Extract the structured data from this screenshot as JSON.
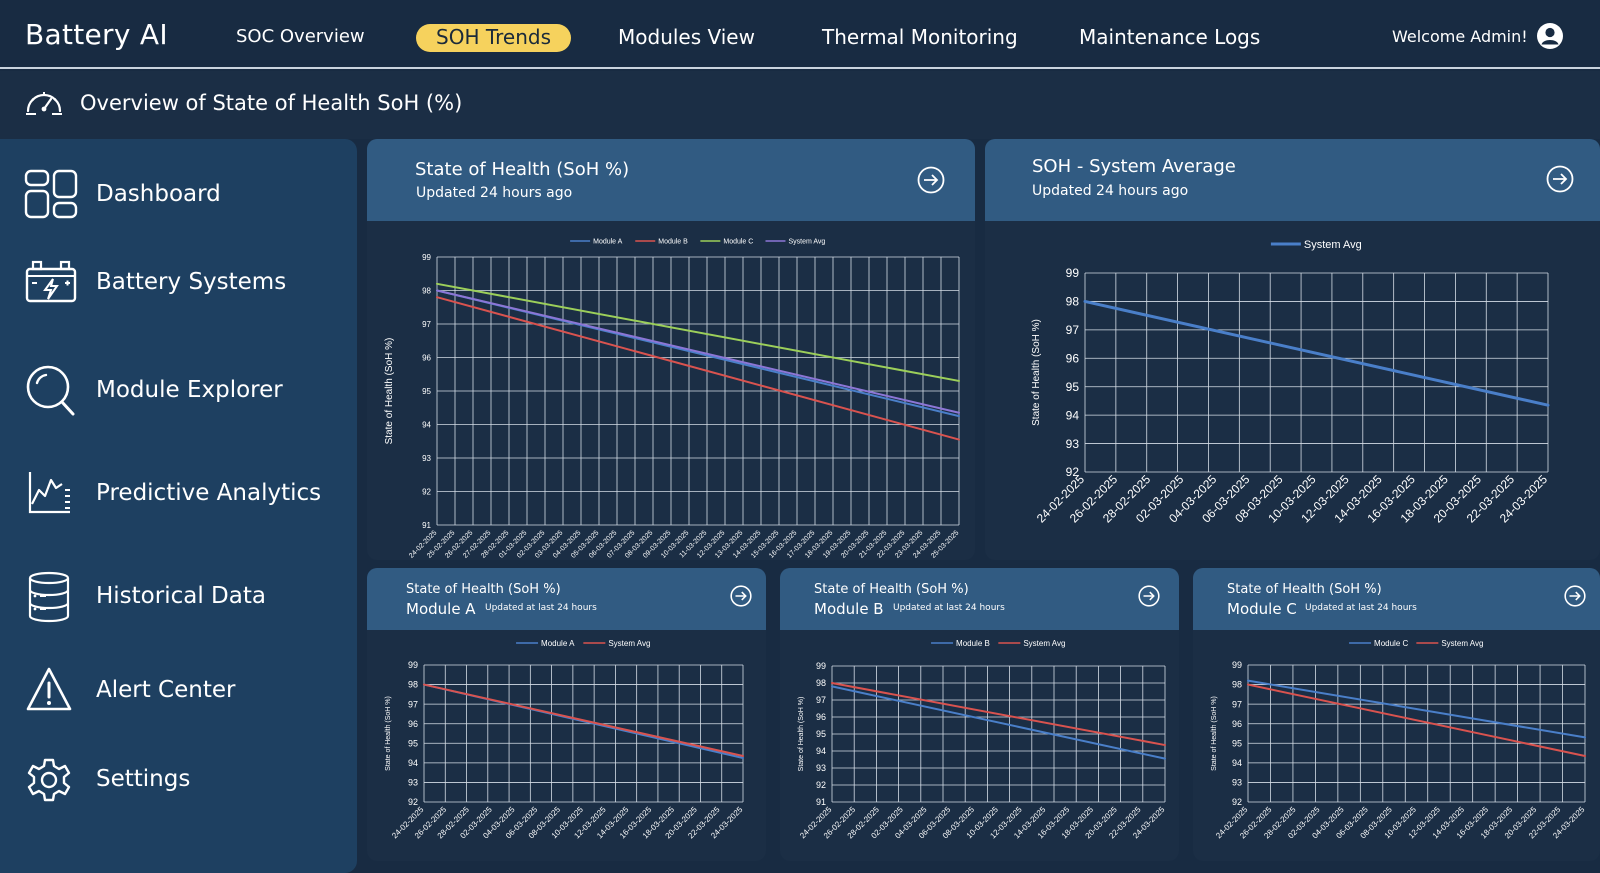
{
  "app": {
    "brand": "Battery AI",
    "welcome": "Welcome Admin!"
  },
  "nav": [
    {
      "label": "SOC Overview",
      "active": false
    },
    {
      "label": "SOH Trends",
      "active": true
    },
    {
      "label": "Modules View",
      "active": false
    },
    {
      "label": "Thermal Monitoring",
      "active": false
    },
    {
      "label": "Maintenance Logs",
      "active": false
    }
  ],
  "subheader": {
    "title": "Overview of State of Health SoH (%)",
    "icon": "gauge-icon"
  },
  "sidebar": {
    "items": [
      {
        "label": "Dashboard",
        "icon": "dashboard-grid-icon"
      },
      {
        "label": "Battery Systems",
        "icon": "battery-icon"
      },
      {
        "label": "Module Explorer",
        "icon": "search-icon"
      },
      {
        "label": "Predictive Analytics",
        "icon": "analytics-chart-icon"
      },
      {
        "label": "Historical Data",
        "icon": "database-icon"
      },
      {
        "label": "Alert Center",
        "icon": "alert-triangle-icon"
      },
      {
        "label": "Settings",
        "icon": "gear-icon"
      }
    ]
  },
  "colors": {
    "module_a": "#4a7fc9",
    "module_b": "#d9534f",
    "module_c": "#9ccf5a",
    "system_avg": "#8c76d6",
    "system_avg_single": "#4a7fc9",
    "system_avg_small": "#d9534f",
    "active_tab": "#f6d25d"
  },
  "cards": {
    "main": {
      "title": "State of Health (SoH %)",
      "subtitle": "Updated 24 hours ago"
    },
    "avg": {
      "title": "SOH - System Average",
      "subtitle": "Updated 24 hours ago"
    },
    "mod_a": {
      "title": "State of Health (SoH %)",
      "module": "Module A",
      "subtitle": "Updated at last 24 hours"
    },
    "mod_b": {
      "title": "State of Health (SoH %)",
      "module": "Module B",
      "subtitle": "Updated at last 24 hours"
    },
    "mod_c": {
      "title": "State of Health (SoH %)",
      "module": "Module C",
      "subtitle": "Updated at last 24 hours"
    }
  },
  "chart_data": [
    {
      "type": "line",
      "ylabel": "State of Health (SoH %)",
      "ylim": [
        91,
        99
      ],
      "yticks": [
        91,
        92,
        93,
        94,
        95,
        96,
        97,
        98,
        99
      ],
      "grid": true,
      "legend_position": "top-center",
      "categories": [
        "24-02-2025",
        "25-02-2025",
        "26-02-2025",
        "27-02-2025",
        "28-02-2025",
        "01-03-2025",
        "02-03-2025",
        "03-03-2025",
        "04-03-2025",
        "05-03-2025",
        "06-03-2025",
        "07-03-2025",
        "08-03-2025",
        "09-03-2025",
        "10-03-2025",
        "11-03-2025",
        "12-03-2025",
        "13-03-2025",
        "14-03-2025",
        "15-03-2025",
        "16-03-2025",
        "17-03-2025",
        "18-03-2025",
        "19-03-2025",
        "20-03-2025",
        "21-03-2025",
        "22-03-2025",
        "23-03-2025",
        "24-03-2025",
        "25-03-2025"
      ],
      "series": [
        {
          "name": "Module A",
          "color_key": "module_a",
          "start": 98.0,
          "end": 94.25
        },
        {
          "name": "Module B",
          "color_key": "module_b",
          "start": 97.8,
          "end": 93.55
        },
        {
          "name": "Module C",
          "color_key": "module_c",
          "start": 98.2,
          "end": 95.3
        },
        {
          "name": "System Avg",
          "color_key": "system_avg",
          "start": 98.0,
          "end": 94.35
        }
      ]
    },
    {
      "type": "line",
      "ylabel": "State of Health (SoH %)",
      "ylim": [
        92,
        99
      ],
      "yticks": [
        92,
        93,
        94,
        95,
        96,
        97,
        98,
        99
      ],
      "grid": true,
      "legend_position": "top-center",
      "categories": [
        "24-02-2025",
        "26-02-2025",
        "28-02-2025",
        "02-03-2025",
        "04-03-2025",
        "06-03-2025",
        "08-03-2025",
        "10-03-2025",
        "12-03-2025",
        "14-03-2025",
        "16-03-2025",
        "18-03-2025",
        "20-03-2025",
        "22-03-2025",
        "24-03-2025"
      ],
      "series": [
        {
          "name": "System Avg",
          "color_key": "system_avg_single",
          "start": 98.0,
          "end": 94.35
        }
      ]
    },
    {
      "type": "line",
      "ylabel": "State of Health (SoH %)",
      "ylim": [
        92,
        99
      ],
      "yticks": [
        92,
        93,
        94,
        95,
        96,
        97,
        98,
        99
      ],
      "grid": true,
      "legend_position": "top-center",
      "categories": [
        "24-02-2025",
        "26-02-2025",
        "28-02-2025",
        "02-03-2025",
        "04-03-2025",
        "06-03-2025",
        "08-03-2025",
        "10-03-2025",
        "12-03-2025",
        "14-03-2025",
        "16-03-2025",
        "18-03-2025",
        "20-03-2025",
        "22-03-2025",
        "24-03-2025"
      ],
      "series": [
        {
          "name": "Module A",
          "color_key": "module_a",
          "start": 98.0,
          "end": 94.25
        },
        {
          "name": "System Avg",
          "color_key": "system_avg_small",
          "start": 98.0,
          "end": 94.35
        }
      ]
    },
    {
      "type": "line",
      "ylabel": "State of Health (SoH %)",
      "ylim": [
        91,
        99
      ],
      "yticks": [
        91,
        92,
        93,
        94,
        95,
        96,
        97,
        98,
        99
      ],
      "grid": true,
      "legend_position": "top-center",
      "categories": [
        "24-02-2025",
        "26-02-2025",
        "28-02-2025",
        "02-03-2025",
        "04-03-2025",
        "06-03-2025",
        "08-03-2025",
        "10-03-2025",
        "12-03-2025",
        "14-03-2025",
        "16-03-2025",
        "18-03-2025",
        "20-03-2025",
        "22-03-2025",
        "24-03-2025"
      ],
      "series": [
        {
          "name": "Module B",
          "color_key": "module_a",
          "start": 97.8,
          "end": 93.55
        },
        {
          "name": "System Avg",
          "color_key": "system_avg_small",
          "start": 98.0,
          "end": 94.35
        }
      ]
    },
    {
      "type": "line",
      "ylabel": "State of Health (SoH %)",
      "ylim": [
        92,
        99
      ],
      "yticks": [
        92,
        93,
        94,
        95,
        96,
        97,
        98,
        99
      ],
      "grid": true,
      "legend_position": "top-center",
      "categories": [
        "24-02-2025",
        "26-02-2025",
        "28-02-2025",
        "02-03-2025",
        "04-03-2025",
        "06-03-2025",
        "08-03-2025",
        "10-03-2025",
        "12-03-2025",
        "14-03-2025",
        "16-03-2025",
        "18-03-2025",
        "20-03-2025",
        "22-03-2025",
        "24-03-2025"
      ],
      "series": [
        {
          "name": "Module C",
          "color_key": "module_a",
          "start": 98.2,
          "end": 95.3
        },
        {
          "name": "System Avg",
          "color_key": "system_avg_small",
          "start": 98.0,
          "end": 94.35
        }
      ]
    }
  ]
}
